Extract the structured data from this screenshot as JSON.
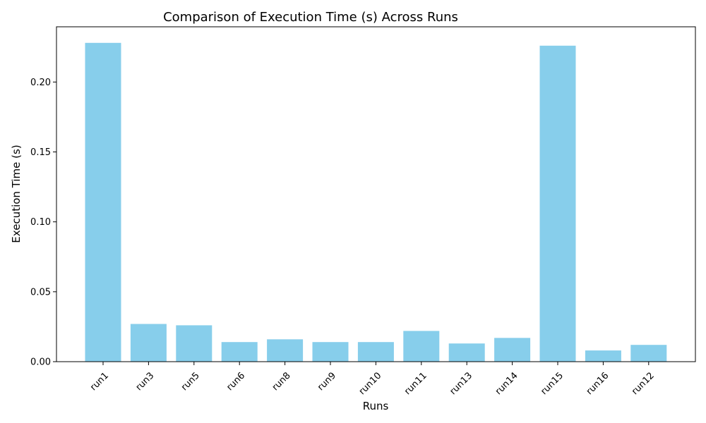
{
  "chart_data": {
    "type": "bar",
    "title": "Comparison of Execution Time (s) Across Runs",
    "xlabel": "Runs",
    "ylabel": "Execution Time (s)",
    "categories": [
      "run1",
      "run3",
      "run5",
      "run6",
      "run8",
      "run9",
      "run10",
      "run11",
      "run13",
      "run14",
      "run15",
      "run16",
      "run12"
    ],
    "values": [
      0.228,
      0.027,
      0.026,
      0.014,
      0.016,
      0.014,
      0.014,
      0.022,
      0.013,
      0.017,
      0.226,
      0.008,
      0.012
    ],
    "ylim": [
      0,
      0.2395
    ],
    "yticks": [
      0.0,
      0.05,
      0.1,
      0.15,
      0.2
    ],
    "ytick_labels": [
      "0.00",
      "0.05",
      "0.10",
      "0.15",
      "0.20"
    ],
    "bar_color": "#87CEEB",
    "grid": false
  }
}
